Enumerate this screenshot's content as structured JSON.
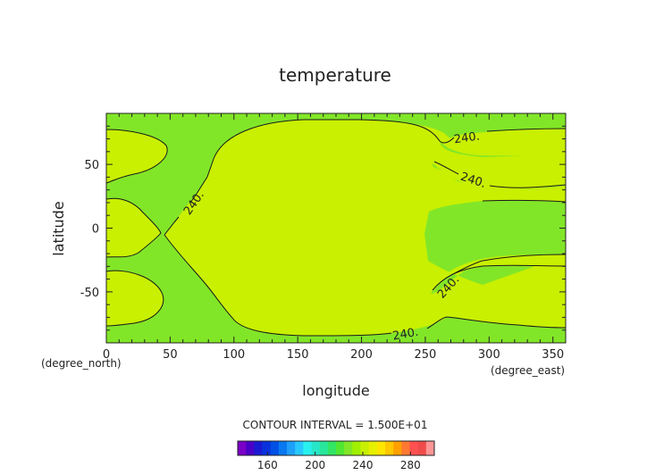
{
  "chart_data": {
    "type": "contour",
    "title": "temperature",
    "xlabel": "longitude",
    "ylabel": "latitude",
    "x_unit": "(degree_east)",
    "y_unit": "(degree_north)",
    "xlim": [
      0,
      360
    ],
    "ylim": [
      -90,
      90
    ],
    "x_ticks": [
      0,
      50,
      100,
      150,
      200,
      250,
      300,
      350
    ],
    "y_ticks": [
      -50,
      0,
      50
    ],
    "contour_label": "240.",
    "contour_interval_text": "CONTOUR INTERVAL = 1.500E+01",
    "colorbar": {
      "min": 135,
      "max": 300,
      "step": 7.5,
      "tick_values": [
        160,
        200,
        240,
        280
      ],
      "colors": [
        "#7a00c8",
        "#4b00c8",
        "#1a1ad2",
        "#0a32dc",
        "#0050e6",
        "#0a78f0",
        "#1ea0fa",
        "#28c8ff",
        "#28f0f0",
        "#28e6c8",
        "#28e69b",
        "#32e664",
        "#50e632",
        "#82e628",
        "#a0f000",
        "#c8f000",
        "#e6f000",
        "#ffe600",
        "#ffc800",
        "#ffa000",
        "#ff7832",
        "#ff5050",
        "#f04b4b",
        "#ff9696"
      ]
    },
    "regions": {
      "background_color": "#82e628",
      "warm_color": "#c8f000"
    }
  }
}
